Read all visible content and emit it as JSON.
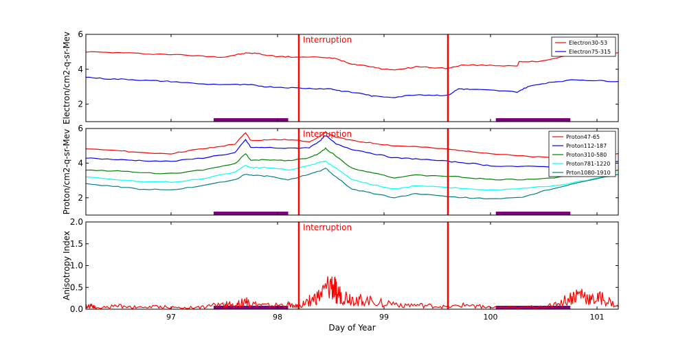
{
  "chart_data": [
    {
      "type": "line",
      "ylabel": "Electron/cm2-q-sr-Mev",
      "xlim": [
        96.2,
        101.2
      ],
      "ylim": [
        1,
        6
      ],
      "yticks": [
        2,
        4,
        6
      ],
      "ytick_labels": [
        "2",
        "4",
        "6"
      ],
      "legend_position": "top-right",
      "interruption_label": "Interruption",
      "series": [
        {
          "name": "Electron30-53",
          "color": "#ff0000",
          "points": [
            [
              96.2,
              5.0
            ],
            [
              96.5,
              4.95
            ],
            [
              96.8,
              4.88
            ],
            [
              97.0,
              4.85
            ],
            [
              97.3,
              4.75
            ],
            [
              97.5,
              4.7
            ],
            [
              97.6,
              4.82
            ],
            [
              97.7,
              4.92
            ],
            [
              97.8,
              4.92
            ],
            [
              97.9,
              4.8
            ],
            [
              98.05,
              4.72
            ],
            [
              98.2,
              4.7
            ],
            [
              98.45,
              4.68
            ],
            [
              98.55,
              4.6
            ],
            [
              98.7,
              4.3
            ],
            [
              98.85,
              4.2
            ],
            [
              99.0,
              4.0
            ],
            [
              99.15,
              3.98
            ],
            [
              99.3,
              4.15
            ],
            [
              99.45,
              4.1
            ],
            [
              99.6,
              4.05
            ],
            [
              99.75,
              4.25
            ],
            [
              100.0,
              4.22
            ],
            [
              100.25,
              4.2
            ],
            [
              100.27,
              4.42
            ],
            [
              100.45,
              4.45
            ],
            [
              100.7,
              4.75
            ],
            [
              100.9,
              4.85
            ],
            [
              101.2,
              4.95
            ]
          ]
        },
        {
          "name": "Electron75-315",
          "color": "#0000ff",
          "points": [
            [
              96.2,
              3.55
            ],
            [
              96.4,
              3.45
            ],
            [
              96.6,
              3.42
            ],
            [
              96.8,
              3.35
            ],
            [
              97.0,
              3.3
            ],
            [
              97.3,
              3.15
            ],
            [
              97.6,
              3.12
            ],
            [
              97.75,
              3.1
            ],
            [
              97.9,
              3.0
            ],
            [
              98.1,
              2.95
            ],
            [
              98.3,
              2.9
            ],
            [
              98.5,
              2.88
            ],
            [
              98.6,
              2.75
            ],
            [
              98.8,
              2.6
            ],
            [
              98.9,
              2.45
            ],
            [
              99.1,
              2.4
            ],
            [
              99.3,
              2.55
            ],
            [
              99.45,
              2.52
            ],
            [
              99.6,
              2.5
            ],
            [
              99.7,
              2.88
            ],
            [
              99.8,
              2.85
            ],
            [
              100.0,
              2.8
            ],
            [
              100.25,
              2.7
            ],
            [
              100.35,
              3.0
            ],
            [
              100.55,
              3.25
            ],
            [
              100.8,
              3.4
            ],
            [
              101.0,
              3.35
            ],
            [
              101.2,
              3.3
            ]
          ]
        }
      ]
    },
    {
      "type": "line",
      "ylabel": "Proton/cm2-q-sr-Mev",
      "xlim": [
        96.2,
        101.2
      ],
      "ylim": [
        1,
        6
      ],
      "yticks": [
        2,
        4,
        6
      ],
      "ytick_labels": [
        "2",
        "4",
        "6"
      ],
      "legend_position": "top-right",
      "interruption_label": "Interruption",
      "series": [
        {
          "name": "Proton47-65",
          "color": "#ff0000",
          "points": [
            [
              96.2,
              4.8
            ],
            [
              96.5,
              4.75
            ],
            [
              96.7,
              4.6
            ],
            [
              97.0,
              4.55
            ],
            [
              97.2,
              4.75
            ],
            [
              97.4,
              4.9
            ],
            [
              97.6,
              5.1
            ],
            [
              97.7,
              5.75
            ],
            [
              97.75,
              5.3
            ],
            [
              97.9,
              5.35
            ],
            [
              98.1,
              5.35
            ],
            [
              98.3,
              5.25
            ],
            [
              98.4,
              5.55
            ],
            [
              98.45,
              5.8
            ],
            [
              98.55,
              5.5
            ],
            [
              98.7,
              5.3
            ],
            [
              98.9,
              5.15
            ],
            [
              99.1,
              5.0
            ],
            [
              99.3,
              4.95
            ],
            [
              99.6,
              4.8
            ],
            [
              99.8,
              4.7
            ],
            [
              100.0,
              4.55
            ],
            [
              100.3,
              4.4
            ],
            [
              100.6,
              4.3
            ],
            [
              100.9,
              4.3
            ],
            [
              101.2,
              4.55
            ]
          ]
        },
        {
          "name": "Proton112-187",
          "color": "#0000ff",
          "points": [
            [
              96.2,
              4.3
            ],
            [
              96.5,
              4.2
            ],
            [
              96.7,
              4.15
            ],
            [
              97.0,
              4.1
            ],
            [
              97.3,
              4.3
            ],
            [
              97.6,
              4.6
            ],
            [
              97.7,
              5.35
            ],
            [
              97.75,
              4.9
            ],
            [
              97.9,
              4.9
            ],
            [
              98.1,
              4.85
            ],
            [
              98.3,
              4.9
            ],
            [
              98.4,
              5.3
            ],
            [
              98.45,
              5.6
            ],
            [
              98.55,
              5.1
            ],
            [
              98.7,
              4.8
            ],
            [
              98.9,
              4.55
            ],
            [
              99.1,
              4.3
            ],
            [
              99.3,
              4.25
            ],
            [
              99.6,
              4.1
            ],
            [
              99.8,
              4.0
            ],
            [
              100.0,
              3.85
            ],
            [
              100.3,
              3.8
            ],
            [
              100.6,
              3.8
            ],
            [
              100.9,
              3.85
            ],
            [
              101.2,
              4.1
            ]
          ]
        },
        {
          "name": "Proton310-580",
          "color": "#008000",
          "points": [
            [
              96.2,
              3.6
            ],
            [
              96.5,
              3.55
            ],
            [
              96.7,
              3.45
            ],
            [
              97.0,
              3.4
            ],
            [
              97.3,
              3.6
            ],
            [
              97.6,
              3.95
            ],
            [
              97.7,
              4.55
            ],
            [
              97.75,
              4.15
            ],
            [
              97.9,
              4.2
            ],
            [
              98.1,
              4.15
            ],
            [
              98.3,
              4.3
            ],
            [
              98.4,
              4.6
            ],
            [
              98.45,
              4.85
            ],
            [
              98.55,
              4.4
            ],
            [
              98.7,
              3.7
            ],
            [
              98.9,
              3.45
            ],
            [
              99.1,
              3.15
            ],
            [
              99.3,
              3.3
            ],
            [
              99.6,
              3.25
            ],
            [
              99.8,
              3.15
            ],
            [
              100.0,
              3.05
            ],
            [
              100.3,
              3.05
            ],
            [
              100.6,
              3.15
            ],
            [
              100.9,
              3.35
            ],
            [
              101.2,
              3.6
            ]
          ]
        },
        {
          "name": "Proton781-1220",
          "color": "#00ffff",
          "points": [
            [
              96.2,
              3.2
            ],
            [
              96.5,
              3.05
            ],
            [
              96.7,
              2.95
            ],
            [
              97.0,
              2.9
            ],
            [
              97.3,
              3.1
            ],
            [
              97.6,
              3.5
            ],
            [
              97.7,
              3.85
            ],
            [
              97.75,
              3.75
            ],
            [
              97.9,
              3.75
            ],
            [
              98.1,
              3.6
            ],
            [
              98.3,
              3.85
            ],
            [
              98.4,
              4.05
            ],
            [
              98.45,
              4.1
            ],
            [
              98.55,
              3.7
            ],
            [
              98.7,
              3.05
            ],
            [
              98.9,
              2.75
            ],
            [
              99.1,
              2.5
            ],
            [
              99.3,
              2.7
            ],
            [
              99.6,
              2.6
            ],
            [
              99.8,
              2.5
            ],
            [
              100.0,
              2.45
            ],
            [
              100.3,
              2.55
            ],
            [
              100.6,
              2.7
            ],
            [
              100.9,
              3.0
            ],
            [
              101.2,
              3.35
            ]
          ]
        },
        {
          "name": "Prton1080-1910",
          "color": "#008080",
          "points": [
            [
              96.2,
              2.8
            ],
            [
              96.5,
              2.65
            ],
            [
              96.7,
              2.5
            ],
            [
              97.0,
              2.45
            ],
            [
              97.3,
              2.7
            ],
            [
              97.6,
              3.05
            ],
            [
              97.7,
              3.35
            ],
            [
              97.75,
              3.3
            ],
            [
              97.9,
              3.25
            ],
            [
              98.1,
              3.05
            ],
            [
              98.3,
              3.35
            ],
            [
              98.4,
              3.55
            ],
            [
              98.45,
              3.7
            ],
            [
              98.55,
              3.2
            ],
            [
              98.7,
              2.5
            ],
            [
              98.9,
              2.25
            ],
            [
              99.1,
              2.0
            ],
            [
              99.3,
              2.25
            ],
            [
              99.6,
              2.05
            ],
            [
              99.8,
              2.0
            ],
            [
              100.0,
              1.95
            ],
            [
              100.3,
              2.0
            ],
            [
              100.5,
              2.4
            ],
            [
              100.8,
              2.85
            ],
            [
              101.2,
              3.35
            ]
          ]
        }
      ]
    },
    {
      "type": "line",
      "ylabel": "Anisotropy Index",
      "xlabel": "Day of Year",
      "xlim": [
        96.2,
        101.2
      ],
      "ylim": [
        0,
        2
      ],
      "yticks": [
        0,
        0.5,
        1,
        1.5,
        2
      ],
      "ytick_labels": [
        "0.0",
        "0.5",
        "1.0",
        "1.5",
        "2.0"
      ],
      "xticks": [
        97,
        98,
        99,
        100,
        101
      ],
      "xtick_labels": [
        "97",
        "98",
        "99",
        "100",
        "101"
      ],
      "interruption_label": "Interruption",
      "series": [
        {
          "name": "Anisotropy",
          "color": "#ff0000",
          "points": [
            [
              96.2,
              0.05
            ],
            [
              96.25,
              0.1
            ],
            [
              96.3,
              0.02
            ],
            [
              96.5,
              0.08
            ],
            [
              96.7,
              0.04
            ],
            [
              96.9,
              0.06
            ],
            [
              97.1,
              0.03
            ],
            [
              97.3,
              0.05
            ],
            [
              97.5,
              0.12
            ],
            [
              97.6,
              0.08
            ],
            [
              97.7,
              0.2
            ],
            [
              97.75,
              0.12
            ],
            [
              97.9,
              0.08
            ],
            [
              98.1,
              0.1
            ],
            [
              98.2,
              0.06
            ],
            [
              98.3,
              0.2
            ],
            [
              98.4,
              0.3
            ],
            [
              98.5,
              0.55
            ],
            [
              98.55,
              0.4
            ],
            [
              98.6,
              0.3
            ],
            [
              98.7,
              0.25
            ],
            [
              98.8,
              0.2
            ],
            [
              99.0,
              0.15
            ],
            [
              99.2,
              0.1
            ],
            [
              99.4,
              0.08
            ],
            [
              99.6,
              0.05
            ],
            [
              99.8,
              0.1
            ],
            [
              100.0,
              0.04
            ],
            [
              100.3,
              0.03
            ],
            [
              100.6,
              0.1
            ],
            [
              100.75,
              0.25
            ],
            [
              100.85,
              0.35
            ],
            [
              100.95,
              0.2
            ],
            [
              101.05,
              0.25
            ],
            [
              101.2,
              0.05
            ]
          ]
        }
      ]
    }
  ],
  "interruptions": [
    98.2,
    99.6
  ],
  "shaded_intervals": [
    [
      97.4,
      98.1
    ],
    [
      100.05,
      100.75
    ]
  ]
}
